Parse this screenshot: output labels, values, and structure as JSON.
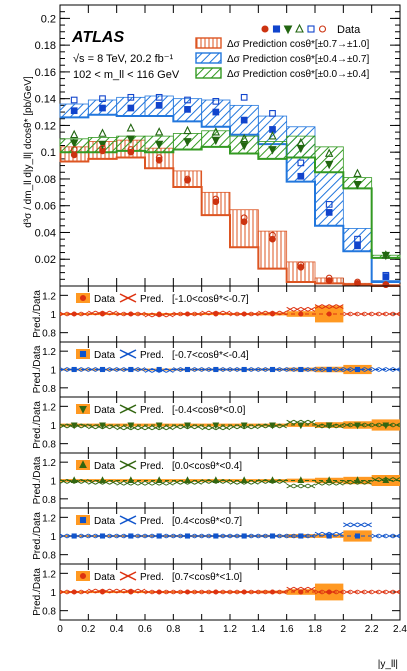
{
  "chart_data": {
    "type": "line",
    "experiment": "ATLAS",
    "energy_lumi": "√s = 8 TeV, 20.2 fb⁻¹",
    "mass_window": "102 < m_ll < 116 GeV",
    "xlabel": "|y_ll|",
    "ylabel": "d³σ / dm_ll d|y_ll| dcosθ* [pb/GeV]",
    "xlim": [
      0,
      2.4
    ],
    "x_ticks": [
      "0",
      "0.2",
      "0.4",
      "0.6",
      "0.8",
      "1",
      "1.2",
      "1.4",
      "1.6",
      "1.8",
      "2",
      "2.2",
      "2.4"
    ],
    "x_edges": [
      0,
      0.2,
      0.4,
      0.6,
      0.8,
      1.0,
      1.2,
      1.4,
      1.6,
      1.8,
      2.0,
      2.2,
      2.4
    ],
    "main": {
      "ylim": [
        0,
        0.21
      ],
      "y_ticks": [
        "0.02",
        "0.04",
        "0.06",
        "0.08",
        "0.1",
        "0.12",
        "0.14",
        "0.16",
        "0.18",
        "0.2"
      ],
      "legend": {
        "data_label": "Data",
        "entries": [
          {
            "label": "Δσ Prediction cosθ*[±0.7→±1.0]",
            "color": "#dd5522"
          },
          {
            "label": "Δσ Prediction cosθ*[±0.4→±0.7]",
            "color": "#2277dd"
          },
          {
            "label": "Δσ Prediction cosθ*[±0.0→±0.4]",
            "color": "#339922"
          }
        ]
      },
      "series": [
        {
          "marker": "circle",
          "filled": true,
          "color": "#cc3311",
          "values": [
            0.098,
            0.101,
            0.1,
            0.094,
            0.079,
            0.063,
            0.048,
            0.035,
            0.014,
            0.004,
            0.002,
            0.001
          ]
        },
        {
          "marker": "square",
          "filled": true,
          "color": "#1144cc",
          "values": [
            0.131,
            0.133,
            0.133,
            0.135,
            0.132,
            0.13,
            0.124,
            0.117,
            0.082,
            0.055,
            0.03,
            0.007
          ]
        },
        {
          "marker": "triangle-down",
          "filled": true,
          "color": "#226611",
          "values": [
            0.107,
            0.106,
            0.11,
            0.106,
            0.108,
            0.109,
            0.105,
            0.102,
            0.103,
            0.091,
            0.076,
            0.023
          ]
        },
        {
          "marker": "triangle-up",
          "filled": false,
          "color": "#226611",
          "values": [
            0.113,
            0.114,
            0.118,
            0.115,
            0.116,
            0.115,
            0.11,
            0.112,
            0.107,
            0.099,
            0.084,
            0.023
          ]
        },
        {
          "marker": "square",
          "filled": false,
          "color": "#1144cc",
          "values": [
            0.139,
            0.14,
            0.141,
            0.141,
            0.139,
            0.138,
            0.141,
            0.129,
            0.092,
            0.061,
            0.035,
            0.008
          ]
        },
        {
          "marker": "circle",
          "filled": false,
          "color": "#cc3311",
          "values": [
            0.102,
            0.103,
            0.102,
            0.096,
            0.08,
            0.065,
            0.051,
            0.038,
            0.016,
            0.006,
            0.003,
            0.001
          ]
        }
      ],
      "bands": [
        {
          "color": "#dd5522",
          "hatch": "vertical",
          "lo": [
            0.093,
            0.095,
            0.096,
            0.088,
            0.074,
            0.053,
            0.029,
            0.013,
            0.003,
            0.002,
            0.001,
            0.0
          ],
          "hi": [
            0.104,
            0.108,
            0.109,
            0.103,
            0.086,
            0.07,
            0.057,
            0.041,
            0.018,
            0.006,
            0.002,
            0.001
          ]
        },
        {
          "color": "#2277dd",
          "hatch": "diagonal",
          "lo": [
            0.126,
            0.128,
            0.127,
            0.127,
            0.123,
            0.119,
            0.113,
            0.106,
            0.078,
            0.045,
            0.026,
            0.003
          ],
          "hi": [
            0.136,
            0.139,
            0.141,
            0.142,
            0.14,
            0.139,
            0.135,
            0.127,
            0.119,
            0.085,
            0.043,
            0.004
          ]
        },
        {
          "color": "#339922",
          "hatch": "diagonal",
          "lo": [
            0.1,
            0.1,
            0.101,
            0.1,
            0.102,
            0.104,
            0.099,
            0.095,
            0.096,
            0.085,
            0.073,
            0.021
          ],
          "hi": [
            0.11,
            0.111,
            0.112,
            0.112,
            0.114,
            0.116,
            0.112,
            0.108,
            0.112,
            0.104,
            0.081,
            0.023
          ]
        }
      ]
    },
    "ratio": {
      "ylabel": "Pred./Data",
      "ylim": [
        0.7,
        1.3
      ],
      "y_ticks": [
        "0.8",
        "1",
        "1.2"
      ],
      "data_label": "Data",
      "pred_label": "Pred.",
      "panels": [
        {
          "range": "[-1.0<cosθ*<-0.7]",
          "marker": "circle",
          "color": "#dd3311",
          "unc": [
            0.01,
            0.01,
            0.01,
            0.01,
            0.01,
            0.01,
            0.01,
            0.015,
            0.03,
            0.09,
            0.0,
            0.0
          ],
          "pred": [
            1.0,
            1.01,
            1.0,
            0.99,
            1.0,
            1.01,
            1.0,
            1.01,
            1.05,
            1.08,
            1.0,
            1.0
          ]
        },
        {
          "range": "[-0.7<cosθ*<-0.4]",
          "marker": "square",
          "color": "#1155cc",
          "unc": [
            0.01,
            0.01,
            0.01,
            0.01,
            0.01,
            0.01,
            0.01,
            0.012,
            0.02,
            0.03,
            0.05,
            0.0
          ],
          "pred": [
            1.0,
            1.0,
            1.0,
            0.99,
            1.0,
            1.0,
            1.0,
            1.0,
            1.0,
            1.0,
            1.0,
            1.0
          ]
        },
        {
          "range": "[-0.4<cosθ*<0.0]",
          "marker": "triangle-down",
          "color": "#336611",
          "unc": [
            0.015,
            0.015,
            0.015,
            0.015,
            0.015,
            0.015,
            0.015,
            0.015,
            0.02,
            0.03,
            0.04,
            0.06
          ],
          "pred": [
            0.99,
            0.98,
            0.97,
            0.97,
            0.98,
            0.97,
            0.98,
            0.99,
            1.03,
            0.99,
            1.0,
            1.0
          ]
        },
        {
          "range": "[0.0<cosθ*<0.4]",
          "marker": "triangle-up",
          "color": "#336611",
          "unc": [
            0.015,
            0.015,
            0.015,
            0.015,
            0.015,
            0.015,
            0.015,
            0.015,
            0.02,
            0.03,
            0.04,
            0.06
          ],
          "pred": [
            0.99,
            0.98,
            0.97,
            0.97,
            0.98,
            0.99,
            0.98,
            0.99,
            0.94,
            0.97,
            0.98,
            1.01
          ]
        },
        {
          "range": "[0.4<cosθ*<0.7]",
          "marker": "square",
          "color": "#1155cc",
          "unc": [
            0.01,
            0.01,
            0.01,
            0.01,
            0.01,
            0.01,
            0.01,
            0.012,
            0.02,
            0.02,
            0.06,
            0.0
          ],
          "pred": [
            1.0,
            1.0,
            1.0,
            1.0,
            1.0,
            1.0,
            1.0,
            1.0,
            1.0,
            1.02,
            1.12,
            1.0
          ]
        },
        {
          "range": "[0.7<cosθ*<1.0]",
          "marker": "circle",
          "color": "#dd3311",
          "unc": [
            0.01,
            0.01,
            0.01,
            0.01,
            0.01,
            0.01,
            0.01,
            0.015,
            0.03,
            0.09,
            0.0,
            0.0
          ],
          "pred": [
            1.0,
            1.01,
            1.01,
            1.0,
            1.0,
            1.0,
            1.0,
            1.0,
            1.03,
            1.0,
            1.0,
            1.0
          ]
        }
      ]
    }
  }
}
